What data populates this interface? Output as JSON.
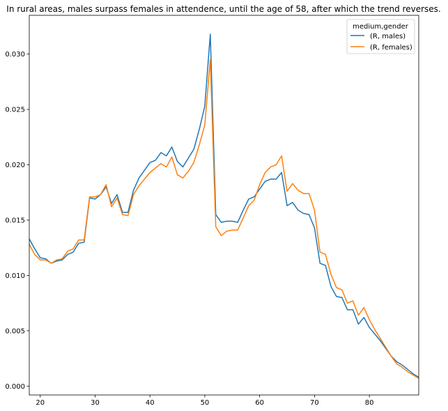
{
  "chart_data": {
    "type": "line",
    "title": "In rural areas, males surpass females in attendence, until the age of 58, after which the trend reverses.",
    "xlabel": "",
    "ylabel": "",
    "xlim": [
      18,
      89
    ],
    "ylim": [
      -0.0008,
      0.0335
    ],
    "xticks": [
      20,
      30,
      40,
      50,
      60,
      70,
      80
    ],
    "yticks": [
      0.0,
      0.005,
      0.01,
      0.015,
      0.02,
      0.025,
      0.03
    ],
    "ytick_labels": [
      "0.000",
      "0.005",
      "0.010",
      "0.015",
      "0.020",
      "0.025",
      "0.030"
    ],
    "grid": false,
    "legend_title": "medium,gender",
    "legend_position": "top-right",
    "x": [
      18,
      19,
      20,
      21,
      22,
      23,
      24,
      25,
      26,
      27,
      28,
      29,
      30,
      31,
      32,
      33,
      34,
      35,
      36,
      37,
      38,
      39,
      40,
      41,
      42,
      43,
      44,
      45,
      46,
      47,
      48,
      49,
      50,
      51,
      52,
      53,
      54,
      55,
      56,
      57,
      58,
      59,
      60,
      61,
      62,
      63,
      64,
      65,
      66,
      67,
      68,
      69,
      70,
      71,
      72,
      73,
      74,
      75,
      76,
      77,
      78,
      79,
      80,
      81,
      82,
      83,
      84,
      85,
      86,
      87,
      88,
      89
    ],
    "series": [
      {
        "name": "(R, males)",
        "color": "#1f77b4",
        "values": [
          0.0133,
          0.0124,
          0.0116,
          0.0115,
          0.0111,
          0.0113,
          0.0114,
          0.0119,
          0.0121,
          0.0129,
          0.013,
          0.017,
          0.0169,
          0.0173,
          0.018,
          0.0165,
          0.0173,
          0.0157,
          0.0157,
          0.0177,
          0.0188,
          0.0195,
          0.0202,
          0.0204,
          0.0211,
          0.0208,
          0.0216,
          0.0203,
          0.0198,
          0.0206,
          0.0214,
          0.0232,
          0.0253,
          0.0318,
          0.0155,
          0.0148,
          0.0149,
          0.0149,
          0.0148,
          0.0159,
          0.0169,
          0.0171,
          0.0178,
          0.0185,
          0.0187,
          0.0187,
          0.0193,
          0.0163,
          0.0166,
          0.0159,
          0.0156,
          0.0155,
          0.0143,
          0.0111,
          0.0109,
          0.009,
          0.0081,
          0.008,
          0.0069,
          0.0069,
          0.0056,
          0.0062,
          0.0053,
          0.0047,
          0.0041,
          0.0034,
          0.0027,
          0.0022,
          0.0019,
          0.0015,
          0.0011,
          0.0008
        ]
      },
      {
        "name": "(R, females)",
        "color": "#ff7f0e",
        "values": [
          0.0128,
          0.0119,
          0.0114,
          0.0114,
          0.0111,
          0.0114,
          0.0115,
          0.0122,
          0.0124,
          0.0132,
          0.0132,
          0.0171,
          0.0171,
          0.0173,
          0.0182,
          0.0162,
          0.017,
          0.0155,
          0.0154,
          0.0173,
          0.0181,
          0.0187,
          0.0193,
          0.0197,
          0.0201,
          0.0198,
          0.0207,
          0.0191,
          0.0188,
          0.0194,
          0.0202,
          0.0218,
          0.0236,
          0.0295,
          0.0144,
          0.0136,
          0.014,
          0.0141,
          0.0141,
          0.0152,
          0.0163,
          0.0168,
          0.0182,
          0.0193,
          0.0198,
          0.02,
          0.0208,
          0.0176,
          0.0183,
          0.0177,
          0.0174,
          0.0174,
          0.0159,
          0.0121,
          0.0119,
          0.0101,
          0.0089,
          0.0087,
          0.0075,
          0.0077,
          0.0064,
          0.0071,
          0.006,
          0.0051,
          0.0043,
          0.0035,
          0.0027,
          0.002,
          0.0017,
          0.0013,
          0.001,
          0.0007
        ]
      }
    ]
  }
}
